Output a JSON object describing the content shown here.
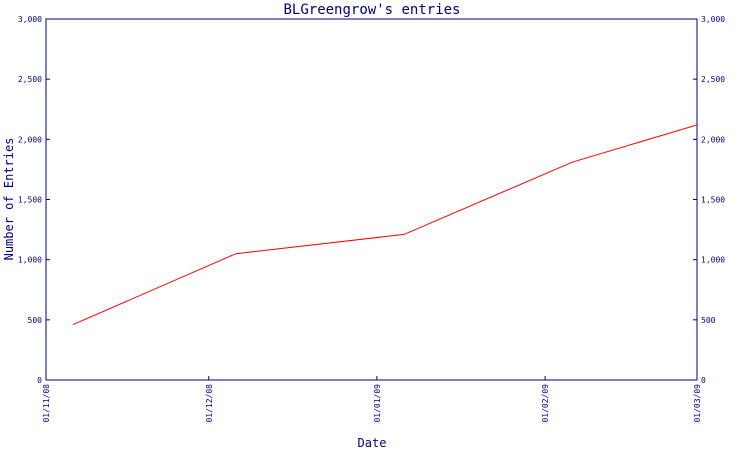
{
  "chart_data": {
    "type": "line",
    "title": "BLGreengrow's entries",
    "xlabel": "Date",
    "ylabel": "Number of Entries",
    "x_ticks": [
      "01/11/08",
      "01/12/08",
      "01/01/09",
      "01/02/09",
      "01/03/09"
    ],
    "y_ticks": [
      "0",
      "500",
      "1,000",
      "1,500",
      "2,000",
      "2,500",
      "3,000"
    ],
    "ylim": [
      0,
      3000
    ],
    "xlim": [
      "2008-11-01",
      "2009-03-01"
    ],
    "series": [
      {
        "color": "#ff0000",
        "points": [
          {
            "x": "2008-11-06",
            "y": 460
          },
          {
            "x": "2008-12-06",
            "y": 1050
          },
          {
            "x": "2009-01-06",
            "y": 1210
          },
          {
            "x": "2009-02-06",
            "y": 1810
          },
          {
            "x": "2009-03-01",
            "y": 2120
          }
        ]
      }
    ],
    "grid": false,
    "colors": {
      "axis": "#000080",
      "line": "#ff0000"
    }
  }
}
